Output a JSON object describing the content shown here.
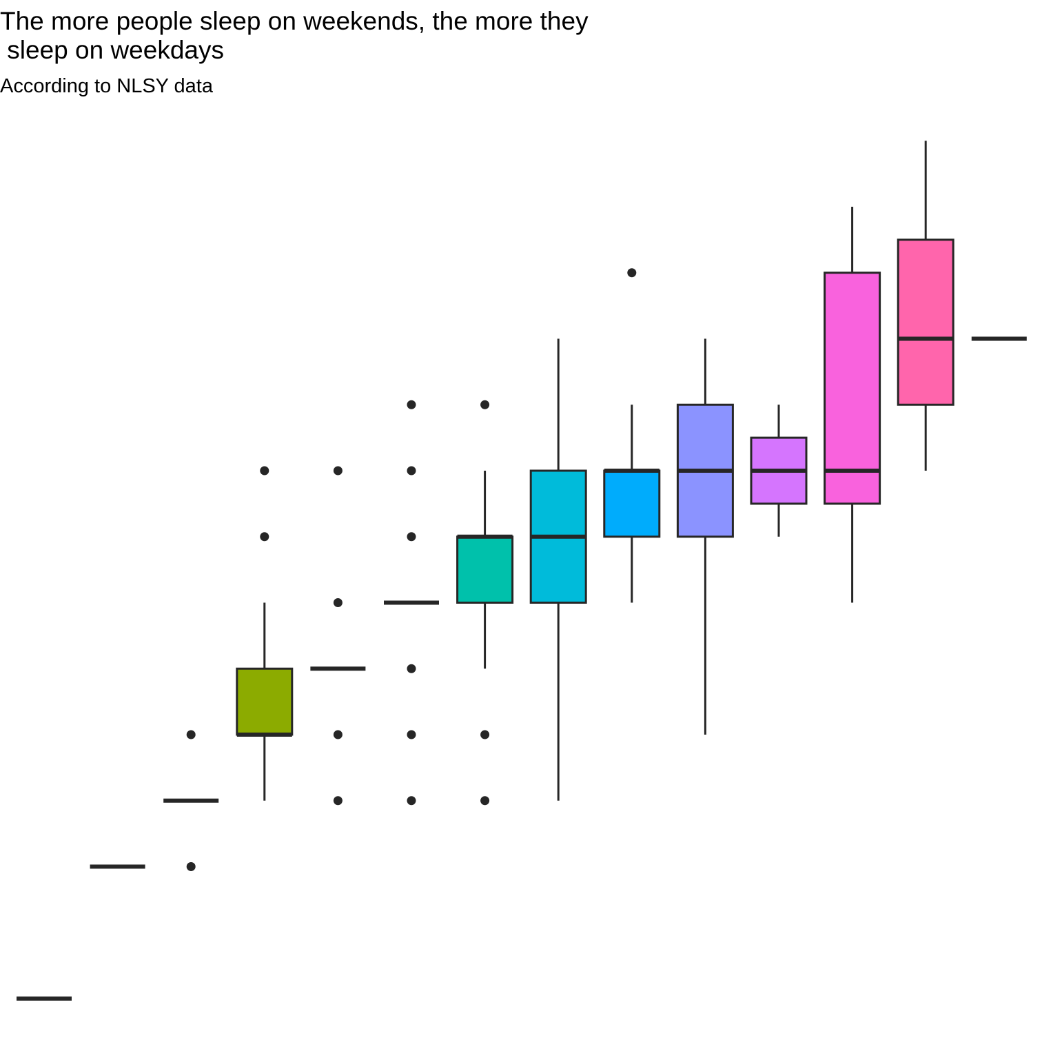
{
  "chart_data": {
    "type": "boxplot",
    "title": "The more people sleep on weekends, the more they\n sleep on weekdays",
    "subtitle": "According to NLSY data",
    "xlabel": "",
    "ylabel": "",
    "grid": false,
    "legend": "none",
    "ylim": [
      1.5,
      14.5
    ],
    "colors": {
      "line": "#262626",
      "fills": [
        "#F8766D",
        "#E18A00",
        "#BE9C00",
        "#8CAB00",
        "#24B700",
        "#00BE70",
        "#00C1AB",
        "#00BBDA",
        "#00ACFC",
        "#8B93FF",
        "#D575FE",
        "#F962DD",
        "#FF65AC"
      ]
    },
    "boxes": [
      {
        "low": 2,
        "q1": 2,
        "median": 2,
        "q3": 2,
        "high": 2,
        "outliers": []
      },
      {
        "low": 4,
        "q1": 4,
        "median": 4,
        "q3": 4,
        "high": 4,
        "outliers": []
      },
      {
        "low": 5,
        "q1": 5,
        "median": 5,
        "q3": 5,
        "high": 5,
        "outliers": [
          4,
          6
        ]
      },
      {
        "low": 5,
        "q1": 6,
        "median": 6,
        "q3": 7,
        "high": 8,
        "outliers": [
          9,
          10
        ]
      },
      {
        "low": 7,
        "q1": 7,
        "median": 7,
        "q3": 7,
        "high": 7,
        "outliers": [
          5,
          6,
          8,
          10
        ]
      },
      {
        "low": 8,
        "q1": 8,
        "median": 8,
        "q3": 8,
        "high": 8,
        "outliers": [
          5,
          6,
          7,
          9,
          10,
          11
        ]
      },
      {
        "low": 7,
        "q1": 8,
        "median": 9,
        "q3": 9,
        "high": 10,
        "outliers": [
          5,
          6,
          11
        ]
      },
      {
        "low": 5,
        "q1": 8,
        "median": 9,
        "q3": 10,
        "high": 12,
        "outliers": []
      },
      {
        "low": 8,
        "q1": 9,
        "median": 10,
        "q3": 10,
        "high": 11,
        "outliers": [
          13
        ]
      },
      {
        "low": 6,
        "q1": 9,
        "median": 10,
        "q3": 11,
        "high": 12,
        "outliers": []
      },
      {
        "low": 9,
        "q1": 9.5,
        "median": 10,
        "q3": 10.5,
        "high": 11,
        "outliers": []
      },
      {
        "low": 8,
        "q1": 9.5,
        "median": 10,
        "q3": 13,
        "high": 14,
        "outliers": []
      },
      {
        "low": 10,
        "q1": 11,
        "median": 12,
        "q3": 13.5,
        "high": 15,
        "outliers": []
      },
      {
        "low": 12,
        "q1": 12,
        "median": 12,
        "q3": 12,
        "high": 12,
        "outliers": []
      }
    ]
  }
}
